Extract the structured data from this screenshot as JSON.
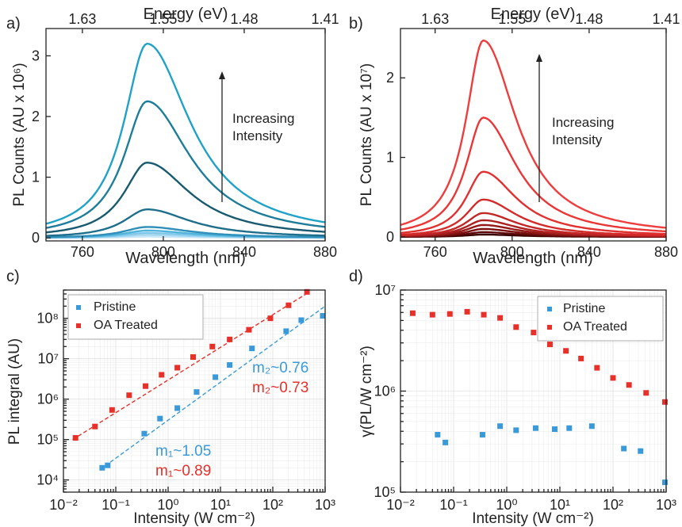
{
  "colors": {
    "pristine": "#3a9ad9",
    "oa_treated": "#e8302a",
    "axis": "#222222",
    "panel_a_palette": [
      "#c8e6f6",
      "#a7d8f0",
      "#7fc8ea",
      "#4fb3dc",
      "#2f8fb8",
      "#1f6f8c",
      "#185a70",
      "#1e7c9b",
      "#20a2c8"
    ],
    "panel_b_palette": [
      "#3a0000",
      "#5a0808",
      "#7a1010",
      "#941818",
      "#ac2020",
      "#c22626",
      "#d42a2a",
      "#e23030",
      "#ea3636",
      "#ef3c3c"
    ]
  },
  "annotations": {
    "a_label": "a)",
    "b_label": "b)",
    "c_label": "c)",
    "d_label": "d)",
    "a_increasing_1": "Increasing",
    "a_increasing_2": "Intensity",
    "b_increasing_1": "Increasing",
    "b_increasing_2": "Intensity",
    "c_m2_pristine": "m₂~0.76",
    "c_m2_oa": "m₂~0.73",
    "c_m1_pristine": "m₁~1.05",
    "c_m1_oa": "m₁~0.89"
  },
  "chart_data": [
    {
      "id": "a",
      "type": "line",
      "xlabel": "Wavelength (nm)",
      "ylabel": "PL Counts (AU x 10⁶)",
      "top_axis_label": "Energy (eV)",
      "top_ticks": [
        "1.63",
        "1.55",
        "1.48",
        "1.41"
      ],
      "top_tick_wavelengths": [
        760,
        800,
        840,
        880
      ],
      "xlim": [
        742,
        880
      ],
      "ylim": [
        -0.05,
        3.45
      ],
      "xticks": [
        760,
        800,
        840,
        880
      ],
      "yticks": [
        0,
        1,
        2,
        3
      ],
      "peak_wavelength": 792,
      "peak_heights": [
        0.02,
        0.05,
        0.08,
        0.12,
        0.18,
        0.47,
        1.24,
        2.25,
        3.2
      ],
      "grid": false
    },
    {
      "id": "b",
      "type": "line",
      "xlabel": "Wavelength (nm)",
      "ylabel": "PL Counts (AU x 10⁷)",
      "top_axis_label": "Energy (eV)",
      "top_ticks": [
        "1.63",
        "1.55",
        "1.48",
        "1.41"
      ],
      "top_tick_wavelengths": [
        760,
        800,
        840,
        880
      ],
      "xlim": [
        742,
        880
      ],
      "ylim": [
        -0.05,
        2.62
      ],
      "xticks": [
        760,
        800,
        840,
        880
      ],
      "yticks": [
        0,
        1,
        2
      ],
      "peak_wavelength": 785,
      "peak_heights": [
        0.03,
        0.06,
        0.1,
        0.15,
        0.21,
        0.3,
        0.47,
        0.82,
        1.5,
        2.47
      ],
      "grid": false
    },
    {
      "id": "c",
      "type": "scatter",
      "xlabel": "Intensity (W cm⁻²)",
      "ylabel": "PL integral (AU)",
      "xscale": "log",
      "yscale": "log",
      "xlim": [
        0.01,
        1000
      ],
      "ylim": [
        5000,
        500000000
      ],
      "xticks": [
        "10⁻²",
        "10⁻¹",
        "10⁰",
        "10¹",
        "10²",
        "10³"
      ],
      "yticks": [
        "10⁴",
        "10⁵",
        "10⁶",
        "10⁷",
        "10⁸"
      ],
      "legend_position": "top-left",
      "grid": true,
      "series": [
        {
          "name": "Pristine",
          "x": [
            0.055,
            0.07,
            0.35,
            0.7,
            1.5,
            3.5,
            8,
            15,
            40,
            180,
            350,
            900
          ],
          "y": [
            20000,
            23000,
            140000,
            330000,
            600000,
            1500000,
            3500000,
            7000000,
            18000000,
            48000000,
            90000000,
            115000000
          ],
          "fit_line": {
            "x": [
              0.05,
              1000
            ],
            "y": [
              18000,
              200000000
            ]
          }
        },
        {
          "name": "OA Treated",
          "x": [
            0.017,
            0.04,
            0.085,
            0.18,
            0.37,
            0.75,
            1.5,
            3,
            7,
            15,
            35,
            90,
            200,
            450
          ],
          "y": [
            110000,
            210000,
            540000,
            1250000,
            2100000,
            4000000,
            6000000,
            11000000,
            20000000,
            30000000,
            52000000,
            100000000,
            210000000,
            450000000
          ],
          "fit_line": {
            "x": [
              0.015,
              500
            ],
            "y": [
              100000,
              450000000
            ]
          }
        }
      ]
    },
    {
      "id": "d",
      "type": "scatter",
      "xlabel": "Intensity (W cm⁻²)",
      "ylabel": "γ(PL/W cm⁻²)",
      "xscale": "log",
      "yscale": "log",
      "xlim": [
        0.01,
        1000
      ],
      "ylim": [
        100000,
        10000000
      ],
      "xticks": [
        "10⁻²",
        "10⁻¹",
        "10⁰",
        "10¹",
        "10²",
        "10³"
      ],
      "yticks": [
        "10⁵",
        "10⁶",
        "10⁷"
      ],
      "legend_position": "top-right",
      "grid": true,
      "series": [
        {
          "name": "Pristine",
          "x": [
            0.05,
            0.07,
            0.35,
            0.75,
            1.5,
            3.5,
            8,
            15,
            40,
            160,
            330,
            950
          ],
          "y": [
            370000,
            310000,
            370000,
            450000,
            410000,
            430000,
            420000,
            430000,
            450000,
            270000,
            255000,
            125000
          ]
        },
        {
          "name": "OA Treated",
          "x": [
            0.017,
            0.04,
            0.085,
            0.18,
            0.37,
            0.75,
            1.5,
            3.2,
            6.5,
            13,
            25,
            50,
            100,
            200,
            420,
            950
          ],
          "y": [
            5900000,
            5700000,
            5800000,
            6100000,
            5700000,
            5300000,
            4300000,
            3800000,
            2900000,
            2500000,
            2100000,
            1700000,
            1350000,
            1150000,
            960000,
            780000
          ]
        }
      ]
    }
  ]
}
